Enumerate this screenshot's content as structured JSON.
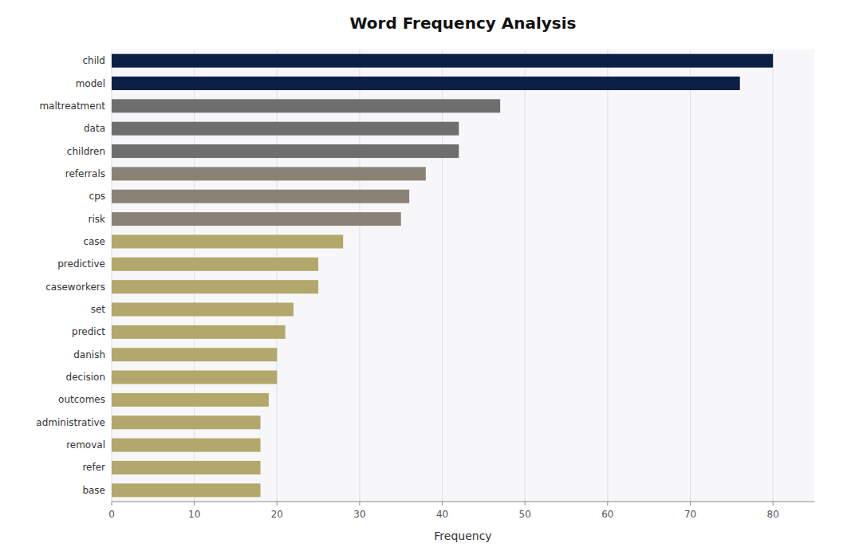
{
  "chart_data": {
    "type": "bar",
    "orientation": "horizontal",
    "title": "Word Frequency Analysis",
    "xlabel": "Frequency",
    "categories": [
      "child",
      "model",
      "maltreatment",
      "data",
      "children",
      "referrals",
      "cps",
      "risk",
      "case",
      "predictive",
      "caseworkers",
      "set",
      "predict",
      "danish",
      "decision",
      "outcomes",
      "administrative",
      "removal",
      "refer",
      "base"
    ],
    "values": [
      80,
      76,
      47,
      42,
      42,
      38,
      36,
      35,
      28,
      25,
      25,
      22,
      21,
      20,
      20,
      19,
      18,
      18,
      18,
      18
    ],
    "colors": [
      "#0d1f45",
      "#0d1f45",
      "#6e6e6e",
      "#6e6e6e",
      "#6e6e6e",
      "#8a8375",
      "#8a8375",
      "#8a8375",
      "#b3a86b",
      "#b3a86b",
      "#b3a86b",
      "#b3a86b",
      "#b3a86b",
      "#b3a86b",
      "#b3a86b",
      "#b3a86b",
      "#b3a86b",
      "#b3a86b",
      "#b3a86b",
      "#b3a86b"
    ],
    "xlim": [
      0,
      85
    ],
    "xticks": [
      0,
      10,
      20,
      30,
      40,
      50,
      60,
      70,
      80
    ],
    "grid": true
  }
}
